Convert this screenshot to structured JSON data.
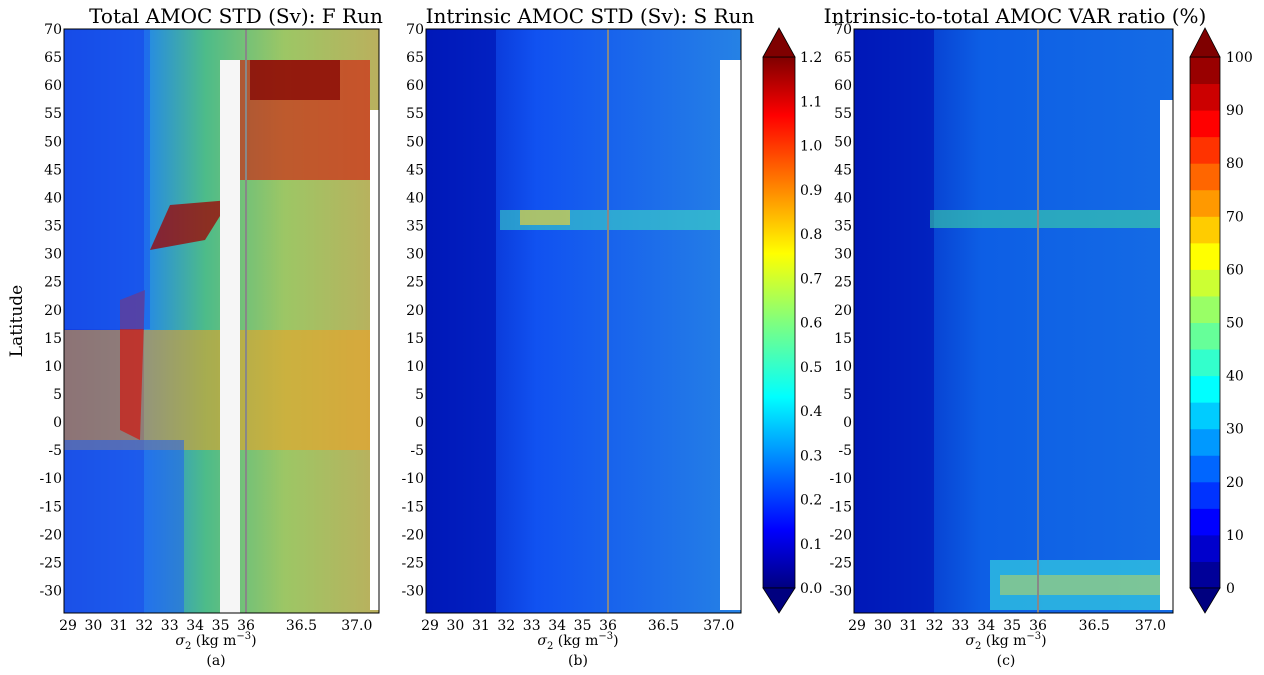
{
  "figure": {
    "ylabel": "Latitude",
    "y_ticks": [
      70,
      65,
      60,
      55,
      50,
      45,
      40,
      35,
      30,
      25,
      20,
      15,
      10,
      5,
      0,
      -5,
      -10,
      -15,
      -20,
      -25,
      -30
    ],
    "x_ticks_light": [
      "29",
      "30",
      "31",
      "32",
      "33",
      "34",
      "35",
      "36"
    ],
    "x_ticks_dense": [
      "36.5",
      "37.0"
    ],
    "xlabel_main": "σ",
    "xlabel_sub": "2",
    "xlabel_unit": " (kg m",
    "xlabel_exp": "−3",
    "xlabel_close": ")"
  },
  "chart_data": [
    {
      "type": "heatmap",
      "panel": "(a)",
      "title": "Total AMOC STD (Sv): F Run",
      "xlabel": "σ2 (kg m−3)",
      "ylabel": "Latitude",
      "x_range": [
        29,
        37.2
      ],
      "x_axis_split_at": 36,
      "ylim": [
        -34,
        70
      ],
      "colorbar": {
        "ticks": [
          "0.0",
          "0.1",
          "0.2",
          "0.3",
          "0.4",
          "0.5",
          "0.6",
          "0.7",
          "0.8",
          "0.9",
          "1.0",
          "1.1",
          "1.2"
        ],
        "range": [
          0,
          1.2
        ],
        "colormap": "jet",
        "extend": "both"
      }
    },
    {
      "type": "heatmap",
      "panel": "(b)",
      "title": "Intrinsic AMOC STD (Sv): S Run",
      "xlabel": "σ2 (kg m−3)",
      "ylabel": "",
      "x_range": [
        29,
        37.2
      ],
      "x_axis_split_at": 36,
      "ylim": [
        -34,
        70
      ]
    },
    {
      "type": "heatmap",
      "panel": "(c)",
      "title": "Intrinsic-to-total AMOC VAR ratio (%)",
      "xlabel": "σ2 (kg m−3)",
      "ylabel": "",
      "x_range": [
        29,
        37.2
      ],
      "x_axis_split_at": 36,
      "ylim": [
        -34,
        70
      ],
      "colorbar": {
        "ticks": [
          "0",
          "10",
          "20",
          "30",
          "40",
          "50",
          "60",
          "70",
          "80",
          "90",
          "100"
        ],
        "range": [
          0,
          100
        ],
        "colormap": "jet",
        "discrete_levels": 20,
        "extend": "both"
      }
    }
  ]
}
